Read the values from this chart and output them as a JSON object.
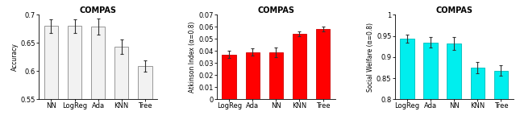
{
  "title": "COMPAS",
  "chart1": {
    "categories": [
      "NN",
      "LogReg",
      "Ada",
      "KNN",
      "Tree"
    ],
    "values": [
      0.68,
      0.68,
      0.679,
      0.643,
      0.609
    ],
    "errors": [
      0.012,
      0.012,
      0.014,
      0.013,
      0.01
    ],
    "ylabel": "Accuracy",
    "ylim": [
      0.55,
      0.7
    ],
    "yticks": [
      0.55,
      0.6,
      0.65,
      0.7
    ],
    "ytick_labels": [
      "0.55",
      "0.6",
      "0.65",
      "0.7"
    ],
    "bar_color": "#f2f2f2",
    "bar_edge_color": "#888888"
  },
  "chart2": {
    "categories": [
      "LogReg",
      "Ada",
      "NN",
      "KNN",
      "Tree"
    ],
    "values": [
      0.037,
      0.039,
      0.039,
      0.054,
      0.058
    ],
    "errors": [
      0.003,
      0.003,
      0.004,
      0.002,
      0.002
    ],
    "ylabel": "Atkinson Index (α=0.8)",
    "ylim": [
      0.0,
      0.07
    ],
    "yticks": [
      0.0,
      0.01,
      0.02,
      0.03,
      0.04,
      0.05,
      0.06,
      0.07
    ],
    "ytick_labels": [
      "0",
      "0.01",
      "0.02",
      "0.03",
      "0.04",
      "0.05",
      "0.06",
      "0.07"
    ],
    "bar_color": "#ff0000",
    "bar_edge_color": "#cc0000"
  },
  "chart3": {
    "categories": [
      "LogReg",
      "Ada",
      "NN",
      "KNN",
      "Tree"
    ],
    "values": [
      0.944,
      0.935,
      0.932,
      0.875,
      0.868
    ],
    "errors": [
      0.01,
      0.012,
      0.015,
      0.013,
      0.012
    ],
    "ylabel": "Social Welfare (α=0.8)",
    "ylim": [
      0.8,
      1.0
    ],
    "yticks": [
      0.8,
      0.85,
      0.9,
      0.95,
      1.0
    ],
    "ytick_labels": [
      "0.8",
      "0.85",
      "0.9",
      "0.95",
      "1"
    ],
    "bar_color": "#00eeee",
    "bar_edge_color": "#00bbbb"
  }
}
